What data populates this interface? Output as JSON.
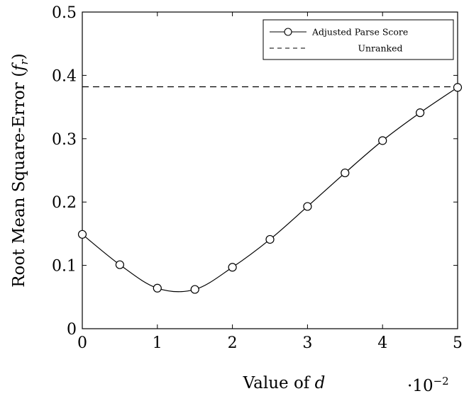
{
  "chart_data": {
    "type": "line",
    "x_title_text": "Value of ",
    "x_title_var": "d",
    "x_multiplier_base": "·10",
    "x_multiplier_exp": "−2",
    "y_title_text": "Root Mean Square-Error (",
    "y_title_var": "f",
    "y_title_sub": "r",
    "y_title_close": ")",
    "xlim": [
      0,
      5
    ],
    "ylim": [
      0,
      0.5
    ],
    "x_ticks": [
      0,
      1,
      2,
      3,
      4,
      5
    ],
    "x_tick_labels": [
      "0",
      "1",
      "2",
      "3",
      "4",
      "5"
    ],
    "y_ticks": [
      0,
      0.1,
      0.2,
      0.3,
      0.4,
      0.5
    ],
    "y_tick_labels": [
      "0",
      "0.1",
      "0.2",
      "0.3",
      "0.4",
      "0.5"
    ],
    "legend_position": "top-right",
    "grid": false,
    "series": [
      {
        "name": "Adjusted Parse Score",
        "style": "solid line with open circle markers",
        "color": "#000000",
        "x": [
          0,
          0.5,
          1,
          1.5,
          2,
          2.5,
          3,
          3.5,
          4,
          4.5,
          5
        ],
        "y": [
          0.149,
          0.101,
          0.064,
          0.062,
          0.097,
          0.141,
          0.193,
          0.246,
          0.297,
          0.341,
          0.381
        ]
      },
      {
        "name": "Unranked",
        "style": "dashed line",
        "color": "#000000",
        "x": [
          0,
          5
        ],
        "y": [
          0.382,
          0.382
        ]
      }
    ]
  }
}
